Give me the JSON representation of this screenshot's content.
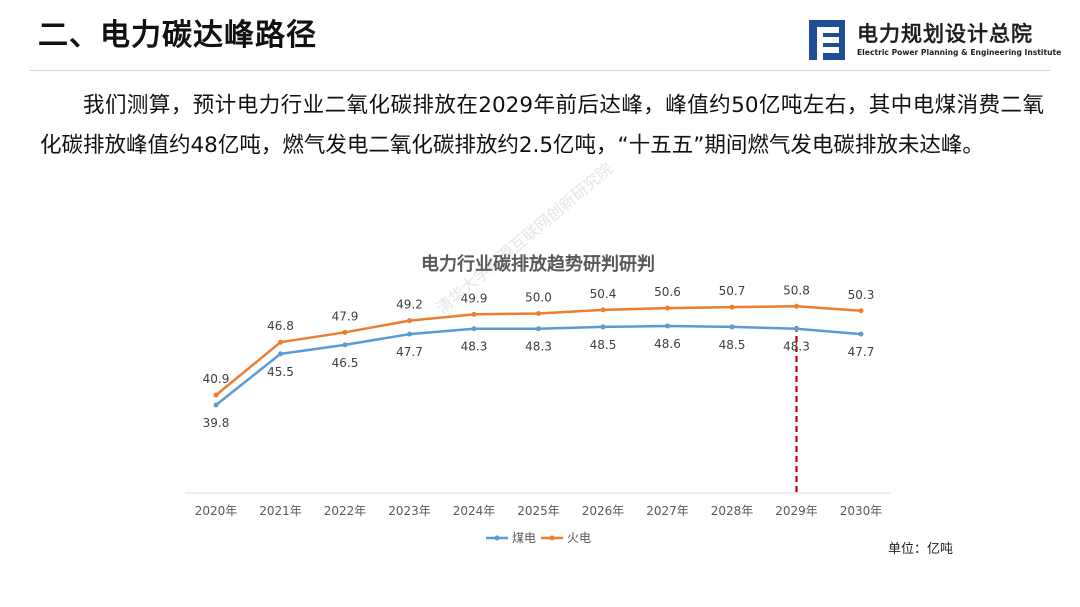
{
  "slide": {
    "title": "二、电力碳达峰路径",
    "paragraph": "我们测算，预计电力行业二氧化碳排放在2029年前后达峰，峰值约50亿吨左右，其中电煤消费二氧化碳排放峰值约48亿吨，燃气发电二氧化碳排放约2.5亿吨，“十五五”期间燃气发电碳排放未达峰。",
    "unit": "单位：亿吨",
    "watermark": "清华大学能源互联网创新研究院"
  },
  "logo": {
    "name_cn": "电力规划设计总院",
    "name_en": "Electric Power Planning & Engineering Institute",
    "color": "#1f4e96"
  },
  "colors": {
    "coal": "#5b9bd5",
    "gas": "#ed7d31",
    "peak_marker": "#c00000"
  },
  "chart_data": {
    "type": "line",
    "title": "电力行业碳排放趋势研判研判",
    "categories": [
      "2020年",
      "2021年",
      "2022年",
      "2023年",
      "2024年",
      "2025年",
      "2026年",
      "2027年",
      "2028年",
      "2029年",
      "2030年"
    ],
    "series": [
      {
        "name": "煤电",
        "values": [
          39.8,
          45.5,
          46.5,
          47.7,
          48.3,
          48.3,
          48.5,
          48.6,
          48.5,
          48.3,
          47.7
        ]
      },
      {
        "name": "火电",
        "values": [
          40.9,
          46.8,
          47.9,
          49.2,
          49.9,
          50.0,
          50.4,
          50.6,
          50.7,
          50.8,
          50.3
        ]
      }
    ],
    "peak_marker_category": "2029年",
    "legend_position": "bottom",
    "grid": false
  }
}
